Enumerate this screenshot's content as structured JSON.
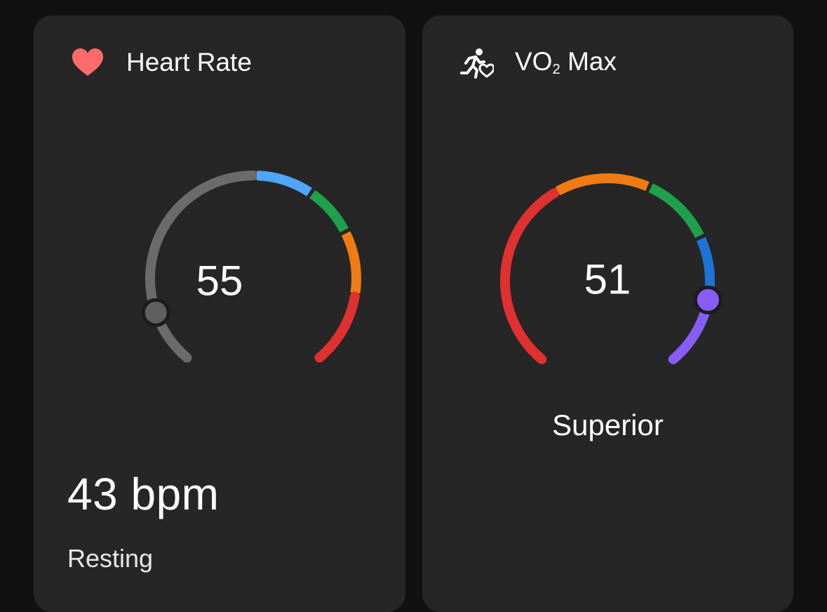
{
  "heart_rate_card": {
    "title": "Heart Rate",
    "icon": "heart-icon",
    "icon_color": "#ff6b6b",
    "gauge_value": "55",
    "big_value": "43 bpm",
    "sub_label": "Resting",
    "gauge_level": 0.11,
    "segments": [
      {
        "color": "#6b6b6b"
      },
      {
        "color": "#4fa6ff"
      },
      {
        "color": "#1fa04a"
      },
      {
        "color": "#f07b12"
      },
      {
        "color": "#e0302f"
      }
    ]
  },
  "vo2_card": {
    "title_main": "VO",
    "title_sub": "2",
    "title_rest": " Max",
    "icon": "runner-heart-icon",
    "gauge_value": "51",
    "status": "Superior",
    "gauge_level": 0.86,
    "segments": [
      {
        "color": "#e0302f"
      },
      {
        "color": "#f07b12"
      },
      {
        "color": "#1fa04a"
      },
      {
        "color": "#1e73d8"
      },
      {
        "color": "#8a5cf6"
      }
    ]
  }
}
